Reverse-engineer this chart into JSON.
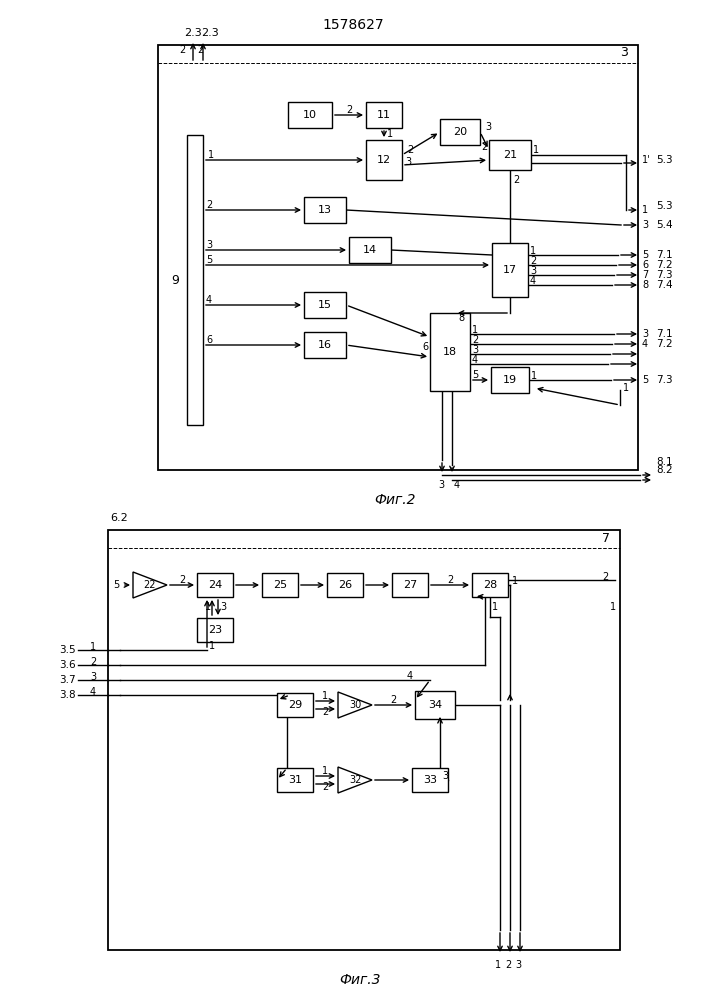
{
  "title": "1578627",
  "fig1_label": "Фиг.2",
  "fig2_label": "Фиг.3",
  "bg_color": "#ffffff"
}
